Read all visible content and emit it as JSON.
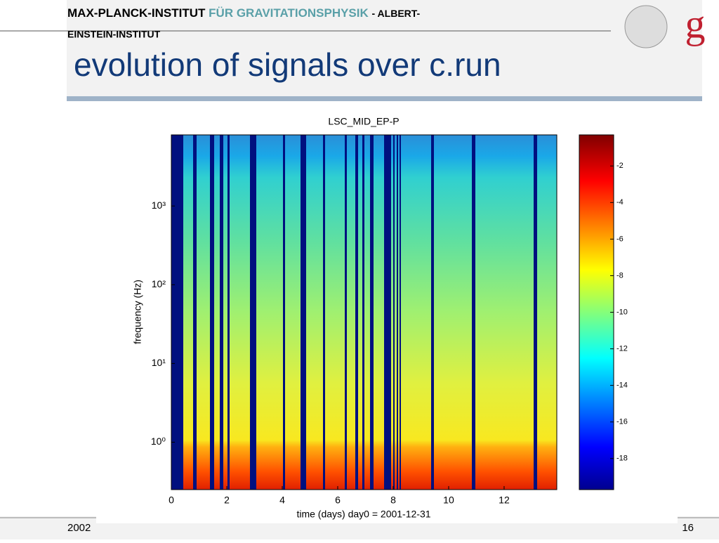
{
  "header": {
    "institute": "MAX-PLANCK-INSTITUT",
    "institute_sub": "FÜR GRAVITATIONSPHYSIK",
    "institute_tail": "- ALBERT-",
    "institute_tail2": "EINSTEIN-INSTITUT"
  },
  "title": "evolution of signals over c.run",
  "figure": {
    "title": "LSC_MID_EP-P",
    "xlabel": "time (days) day0 = 2001-12-31",
    "ylabel": "frequency (Hz)",
    "xlim": [
      0,
      13.9
    ],
    "xticks": [
      0,
      2,
      4,
      6,
      8,
      10,
      12
    ],
    "ylog": true,
    "ylim": [
      0.25,
      8000
    ],
    "yticks": [
      {
        "value": 1,
        "label": "10⁰"
      },
      {
        "value": 10,
        "label": "10¹"
      },
      {
        "value": 100,
        "label": "10²"
      },
      {
        "value": 1000,
        "label": "10³"
      }
    ],
    "clim": [
      -19.7,
      -0.3
    ],
    "cticks": [
      -2,
      -4,
      -6,
      -8,
      -10,
      -12,
      -14,
      -16,
      -18
    ]
  },
  "footer": {
    "left": "2002",
    "page": "16"
  }
}
